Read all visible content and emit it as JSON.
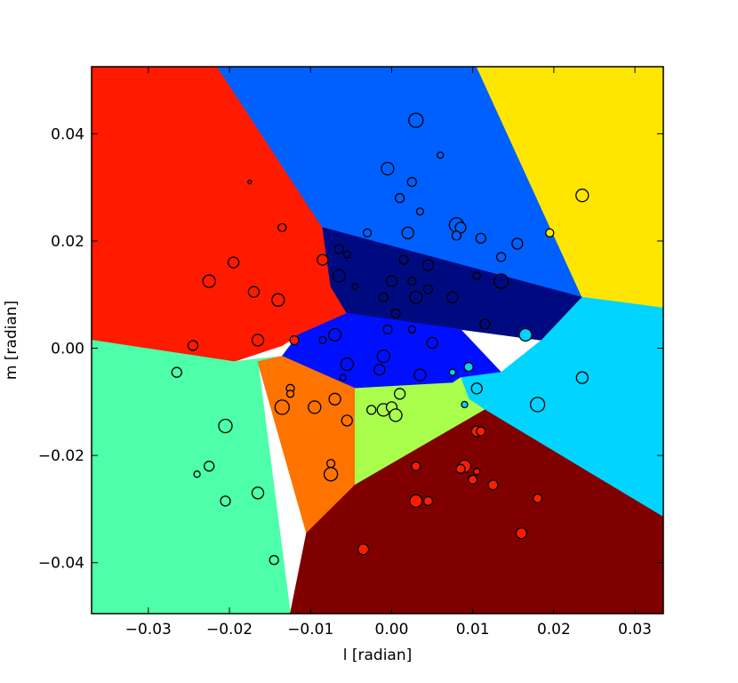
{
  "chart_data": {
    "type": "scatter",
    "title": "",
    "xlabel": "l [radian]",
    "ylabel": "m [radian]",
    "xlim": [
      -0.037,
      0.0335
    ],
    "ylim": [
      -0.0495,
      0.0525
    ],
    "xticks": [
      -0.03,
      -0.02,
      -0.01,
      0.0,
      0.01,
      0.02,
      0.03
    ],
    "xtick_labels": [
      "−0.03",
      "−0.02",
      "−0.01",
      "0.00",
      "0.01",
      "0.02",
      "0.03"
    ],
    "yticks": [
      -0.04,
      -0.02,
      0.0,
      0.02,
      0.04
    ],
    "ytick_labels": [
      "−0.04",
      "−0.02",
      "0.00",
      "0.02",
      "0.04"
    ],
    "grid": false,
    "legend": "none",
    "regions": [
      {
        "color": "#ff1a00",
        "polygon": [
          [
            -0.037,
            0.0525
          ],
          [
            -0.0215,
            0.0525
          ],
          [
            -0.0085,
            0.0225
          ],
          [
            -0.0075,
            0.0115
          ],
          [
            -0.0055,
            0.0065
          ],
          [
            -0.0115,
            0.0025
          ],
          [
            -0.0135,
            0.0005
          ],
          [
            -0.0195,
            -0.0025
          ],
          [
            -0.037,
            0.0015
          ]
        ]
      },
      {
        "color": "#0060ff",
        "polygon": [
          [
            -0.0215,
            0.0525
          ],
          [
            0.0105,
            0.0525
          ],
          [
            0.0235,
            0.0095
          ],
          [
            -0.0085,
            0.0225
          ]
        ]
      },
      {
        "color": "#ffe600",
        "polygon": [
          [
            0.0105,
            0.0525
          ],
          [
            0.0335,
            0.0525
          ],
          [
            0.0335,
            0.0075
          ],
          [
            0.0235,
            0.0095
          ]
        ]
      },
      {
        "color": "#000a80",
        "polygon": [
          [
            -0.0085,
            0.0225
          ],
          [
            0.0235,
            0.0095
          ],
          [
            0.0185,
            0.0015
          ],
          [
            0.0085,
            0.0035
          ],
          [
            -0.0055,
            0.0065
          ],
          [
            -0.0075,
            0.0115
          ]
        ]
      },
      {
        "color": "#0010ff",
        "polygon": [
          [
            -0.0055,
            0.0065
          ],
          [
            0.0085,
            0.0035
          ],
          [
            0.0135,
            -0.0045
          ],
          [
            0.0075,
            -0.0065
          ],
          [
            -0.0045,
            -0.0075
          ],
          [
            -0.0135,
            -0.0015
          ],
          [
            -0.0115,
            0.0025
          ]
        ]
      },
      {
        "color": "#00d4ff",
        "polygon": [
          [
            0.0235,
            0.0095
          ],
          [
            0.0335,
            0.0075
          ],
          [
            0.0335,
            -0.0315
          ],
          [
            0.0115,
            -0.0115
          ],
          [
            0.0095,
            -0.0095
          ],
          [
            0.0085,
            -0.0055
          ],
          [
            0.0135,
            -0.0045
          ],
          [
            0.0185,
            0.0015
          ]
        ]
      },
      {
        "color": "#4cffa8",
        "polygon": [
          [
            -0.037,
            0.0015
          ],
          [
            -0.0195,
            -0.0025
          ],
          [
            -0.0135,
            -0.0015
          ],
          [
            -0.0165,
            -0.0025
          ],
          [
            -0.0125,
            -0.0495
          ],
          [
            -0.037,
            -0.0495
          ]
        ]
      },
      {
        "color": "#ff7300",
        "polygon": [
          [
            -0.0165,
            -0.0025
          ],
          [
            -0.0135,
            -0.0015
          ],
          [
            -0.0045,
            -0.0075
          ],
          [
            -0.0045,
            -0.0255
          ],
          [
            -0.0105,
            -0.0345
          ]
        ]
      },
      {
        "color": "#aaff4c",
        "polygon": [
          [
            -0.0045,
            -0.0075
          ],
          [
            0.0075,
            -0.0065
          ],
          [
            0.0085,
            -0.0055
          ],
          [
            0.0095,
            -0.0095
          ],
          [
            0.0115,
            -0.0115
          ],
          [
            -0.0045,
            -0.0255
          ]
        ]
      },
      {
        "color": "#800000",
        "polygon": [
          [
            -0.0045,
            -0.0255
          ],
          [
            0.0115,
            -0.0115
          ],
          [
            0.0335,
            -0.0315
          ],
          [
            0.0335,
            -0.0495
          ],
          [
            -0.0125,
            -0.0495
          ],
          [
            -0.0105,
            -0.0345
          ]
        ]
      }
    ],
    "points": [
      {
        "x": 0.003,
        "y": 0.0425,
        "s": 8,
        "color": "#0060ff"
      },
      {
        "x": 0.006,
        "y": 0.036,
        "s": 3.5,
        "color": "#0060ff"
      },
      {
        "x": -0.0005,
        "y": 0.0335,
        "s": 7,
        "color": "#0060ff"
      },
      {
        "x": 0.0025,
        "y": 0.031,
        "s": 5,
        "color": "#0060ff"
      },
      {
        "x": 0.001,
        "y": 0.028,
        "s": 5,
        "color": "#0060ff"
      },
      {
        "x": 0.0035,
        "y": 0.0255,
        "s": 4,
        "color": "#0060ff"
      },
      {
        "x": 0.008,
        "y": 0.023,
        "s": 8,
        "color": "#0060ff"
      },
      {
        "x": 0.0085,
        "y": 0.0225,
        "s": 6,
        "color": "#0060ff"
      },
      {
        "x": 0.002,
        "y": 0.0215,
        "s": 6.5,
        "color": "#0060ff"
      },
      {
        "x": -0.003,
        "y": 0.0215,
        "s": 4.5,
        "color": "#0060ff"
      },
      {
        "x": 0.008,
        "y": 0.021,
        "s": 5,
        "color": "#0060ff"
      },
      {
        "x": 0.011,
        "y": 0.0205,
        "s": 5.5,
        "color": "#0060ff"
      },
      {
        "x": 0.0155,
        "y": 0.0195,
        "s": 6,
        "color": "#0060ff"
      },
      {
        "x": 0.0135,
        "y": 0.017,
        "s": 5,
        "color": "#0060ff"
      },
      {
        "x": 0.0235,
        "y": 0.0285,
        "s": 7,
        "color": "#ffe600"
      },
      {
        "x": 0.0195,
        "y": 0.0215,
        "s": 4.5,
        "color": "#ffe600"
      },
      {
        "x": -0.0175,
        "y": 0.031,
        "s": 2,
        "color": "#ff1a00"
      },
      {
        "x": -0.0135,
        "y": 0.0225,
        "s": 4.5,
        "color": "#ff1a00"
      },
      {
        "x": -0.0195,
        "y": 0.016,
        "s": 6,
        "color": "#ff1a00"
      },
      {
        "x": -0.0085,
        "y": 0.0165,
        "s": 6,
        "color": "#ff1a00"
      },
      {
        "x": -0.0225,
        "y": 0.0125,
        "s": 7,
        "color": "#ff1a00"
      },
      {
        "x": -0.017,
        "y": 0.0105,
        "s": 6,
        "color": "#ff1a00"
      },
      {
        "x": -0.014,
        "y": 0.009,
        "s": 7,
        "color": "#ff1a00"
      },
      {
        "x": -0.0165,
        "y": 0.0015,
        "s": 6.5,
        "color": "#ff1a00"
      },
      {
        "x": -0.012,
        "y": 0.0015,
        "s": 5,
        "color": "#ff1a00"
      },
      {
        "x": -0.0245,
        "y": 0.0005,
        "s": 5.5,
        "color": "#ff1a00"
      },
      {
        "x": -0.0065,
        "y": 0.0185,
        "s": 5,
        "color": "#000a80"
      },
      {
        "x": -0.0055,
        "y": 0.0175,
        "s": 4,
        "color": "#000a80"
      },
      {
        "x": 0.0015,
        "y": 0.0165,
        "s": 5,
        "color": "#000a80"
      },
      {
        "x": 0.0045,
        "y": 0.0155,
        "s": 6,
        "color": "#000a80"
      },
      {
        "x": -0.0065,
        "y": 0.0135,
        "s": 7,
        "color": "#000a80"
      },
      {
        "x": -0.0045,
        "y": 0.0115,
        "s": 3.5,
        "color": "#000a80"
      },
      {
        "x": 0.0,
        "y": 0.0125,
        "s": 6,
        "color": "#000a80"
      },
      {
        "x": 0.0025,
        "y": 0.0125,
        "s": 4.5,
        "color": "#000a80"
      },
      {
        "x": 0.0045,
        "y": 0.011,
        "s": 5,
        "color": "#000a80"
      },
      {
        "x": -0.001,
        "y": 0.0095,
        "s": 5,
        "color": "#000a80"
      },
      {
        "x": 0.003,
        "y": 0.0095,
        "s": 7,
        "color": "#000a80"
      },
      {
        "x": 0.0075,
        "y": 0.0095,
        "s": 6,
        "color": "#000a80"
      },
      {
        "x": 0.0105,
        "y": 0.0135,
        "s": 4,
        "color": "#000a80"
      },
      {
        "x": 0.0135,
        "y": 0.0125,
        "s": 8,
        "color": "#000a80"
      },
      {
        "x": 0.0115,
        "y": 0.0045,
        "s": 5.5,
        "color": "#000a80"
      },
      {
        "x": 0.0005,
        "y": 0.0065,
        "s": 5,
        "color": "#000a80"
      },
      {
        "x": -0.007,
        "y": 0.0025,
        "s": 7,
        "color": "#0010ff"
      },
      {
        "x": -0.0085,
        "y": 0.0015,
        "s": 4,
        "color": "#0010ff"
      },
      {
        "x": -0.0005,
        "y": 0.0035,
        "s": 5,
        "color": "#0010ff"
      },
      {
        "x": 0.0025,
        "y": 0.0035,
        "s": 4,
        "color": "#0010ff"
      },
      {
        "x": 0.005,
        "y": 0.001,
        "s": 6,
        "color": "#0010ff"
      },
      {
        "x": -0.0055,
        "y": -0.003,
        "s": 7,
        "color": "#0010ff"
      },
      {
        "x": -0.001,
        "y": -0.0015,
        "s": 7,
        "color": "#0010ff"
      },
      {
        "x": -0.0015,
        "y": -0.004,
        "s": 6,
        "color": "#0010ff"
      },
      {
        "x": 0.0035,
        "y": -0.005,
        "s": 6.5,
        "color": "#0010ff"
      },
      {
        "x": -0.006,
        "y": -0.0055,
        "s": 3.5,
        "color": "#0010ff"
      },
      {
        "x": 0.0165,
        "y": 0.0025,
        "s": 7,
        "color": "#00d4ff"
      },
      {
        "x": 0.0095,
        "y": -0.0035,
        "s": 5,
        "color": "#00d4ff"
      },
      {
        "x": 0.0075,
        "y": -0.0045,
        "s": 3.5,
        "color": "#00d4ff"
      },
      {
        "x": 0.0235,
        "y": -0.0055,
        "s": 6.5,
        "color": "#00d4ff"
      },
      {
        "x": 0.0105,
        "y": -0.0075,
        "s": 6,
        "color": "#00d4ff"
      },
      {
        "x": 0.018,
        "y": -0.0105,
        "s": 8,
        "color": "#00d4ff"
      },
      {
        "x": 0.009,
        "y": -0.0105,
        "s": 3.5,
        "color": "#00d4ff"
      },
      {
        "x": -0.0125,
        "y": -0.0075,
        "s": 4.5,
        "color": "#ff7300"
      },
      {
        "x": -0.0125,
        "y": -0.0085,
        "s": 4,
        "color": "#ff7300"
      },
      {
        "x": -0.007,
        "y": -0.0095,
        "s": 6.5,
        "color": "#ff7300"
      },
      {
        "x": -0.0135,
        "y": -0.011,
        "s": 8,
        "color": "#ff7300"
      },
      {
        "x": -0.0095,
        "y": -0.011,
        "s": 7,
        "color": "#ff7300"
      },
      {
        "x": -0.0055,
        "y": -0.0135,
        "s": 6,
        "color": "#ff7300"
      },
      {
        "x": -0.0075,
        "y": -0.0215,
        "s": 4.5,
        "color": "#ff7300"
      },
      {
        "x": -0.0075,
        "y": -0.0235,
        "s": 7.5,
        "color": "#ff7300"
      },
      {
        "x": 0.001,
        "y": -0.0085,
        "s": 6,
        "color": "#aaff4c"
      },
      {
        "x": -0.0025,
        "y": -0.0115,
        "s": 5,
        "color": "#aaff4c"
      },
      {
        "x": -0.001,
        "y": -0.0115,
        "s": 7,
        "color": "#aaff4c"
      },
      {
        "x": 0.0,
        "y": -0.011,
        "s": 6,
        "color": "#aaff4c"
      },
      {
        "x": 0.0005,
        "y": -0.0125,
        "s": 7,
        "color": "#aaff4c"
      },
      {
        "x": -0.0265,
        "y": -0.0045,
        "s": 5.5,
        "color": "#4cffa8"
      },
      {
        "x": -0.0205,
        "y": -0.0145,
        "s": 7.5,
        "color": "#4cffa8"
      },
      {
        "x": -0.0225,
        "y": -0.022,
        "s": 5.5,
        "color": "#4cffa8"
      },
      {
        "x": -0.024,
        "y": -0.0235,
        "s": 3.5,
        "color": "#4cffa8"
      },
      {
        "x": -0.0165,
        "y": -0.027,
        "s": 6.5,
        "color": "#4cffa8"
      },
      {
        "x": -0.0205,
        "y": -0.0285,
        "s": 5.5,
        "color": "#4cffa8"
      },
      {
        "x": -0.0145,
        "y": -0.0395,
        "s": 5,
        "color": "#4cffa8"
      },
      {
        "x": 0.0105,
        "y": -0.0155,
        "s": 6,
        "color": "#ff1a00"
      },
      {
        "x": 0.011,
        "y": -0.0155,
        "s": 5,
        "color": "#ff1a00"
      },
      {
        "x": 0.003,
        "y": -0.022,
        "s": 5,
        "color": "#ff1a00"
      },
      {
        "x": 0.009,
        "y": -0.022,
        "s": 7,
        "color": "#ff1a00"
      },
      {
        "x": 0.0085,
        "y": -0.0225,
        "s": 5,
        "color": "#ff1a00"
      },
      {
        "x": 0.0105,
        "y": -0.023,
        "s": 3.5,
        "color": "#ff1a00"
      },
      {
        "x": 0.01,
        "y": -0.0245,
        "s": 5,
        "color": "#ff1a00"
      },
      {
        "x": 0.0125,
        "y": -0.0255,
        "s": 5.5,
        "color": "#ff1a00"
      },
      {
        "x": 0.003,
        "y": -0.0285,
        "s": 7,
        "color": "#ff1a00"
      },
      {
        "x": 0.0045,
        "y": -0.0285,
        "s": 5,
        "color": "#ff1a00"
      },
      {
        "x": 0.018,
        "y": -0.028,
        "s": 5,
        "color": "#ff1a00"
      },
      {
        "x": 0.016,
        "y": -0.0345,
        "s": 6,
        "color": "#ff1a00"
      },
      {
        "x": -0.0035,
        "y": -0.0375,
        "s": 6,
        "color": "#ff1a00"
      }
    ]
  }
}
